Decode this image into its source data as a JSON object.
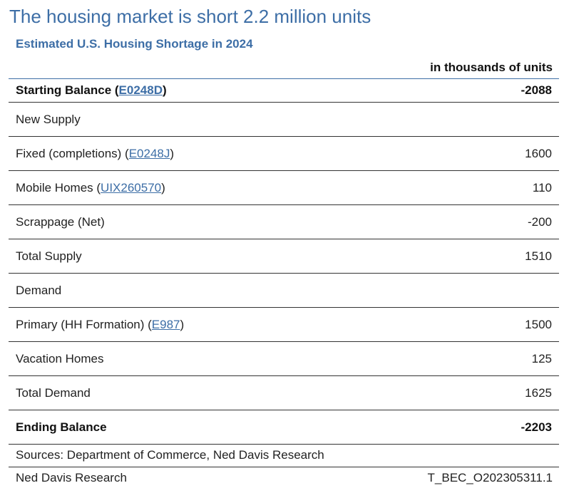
{
  "title": "The housing market is short 2.2 million units",
  "subtitle": "Estimated U.S. Housing Shortage in 2024",
  "units_label": "in thousands of units",
  "rows": [
    {
      "label": "Starting Balance",
      "code": "E0248D",
      "value": "-2088",
      "bold": true
    },
    {
      "label": "New Supply",
      "code": null,
      "value": "",
      "bold": false
    },
    {
      "label": "Fixed (completions)",
      "code": "E0248J",
      "value": "1600",
      "bold": false
    },
    {
      "label": "Mobile Homes",
      "code": "UIX260570",
      "value": "110",
      "bold": false
    },
    {
      "label": "Scrappage (Net)",
      "code": null,
      "value": "-200",
      "bold": false
    },
    {
      "label": "Total Supply",
      "code": null,
      "value": "1510",
      "bold": false
    },
    {
      "label": "Demand",
      "code": null,
      "value": "",
      "bold": false
    },
    {
      "label": "Primary (HH Formation)",
      "code": "E987",
      "value": "1500",
      "bold": false
    },
    {
      "label": "Vacation Homes",
      "code": null,
      "value": "125",
      "bold": false
    },
    {
      "label": "Total Demand",
      "code": null,
      "value": "1625",
      "bold": false
    },
    {
      "label": "Ending Balance",
      "code": null,
      "value": "-2203",
      "bold": true
    }
  ],
  "footer": {
    "sources": "Sources: Department of Commerce, Ned Davis Research",
    "brand": "Ned Davis Research",
    "chart_id": "T_BEC_O202305311.1"
  }
}
